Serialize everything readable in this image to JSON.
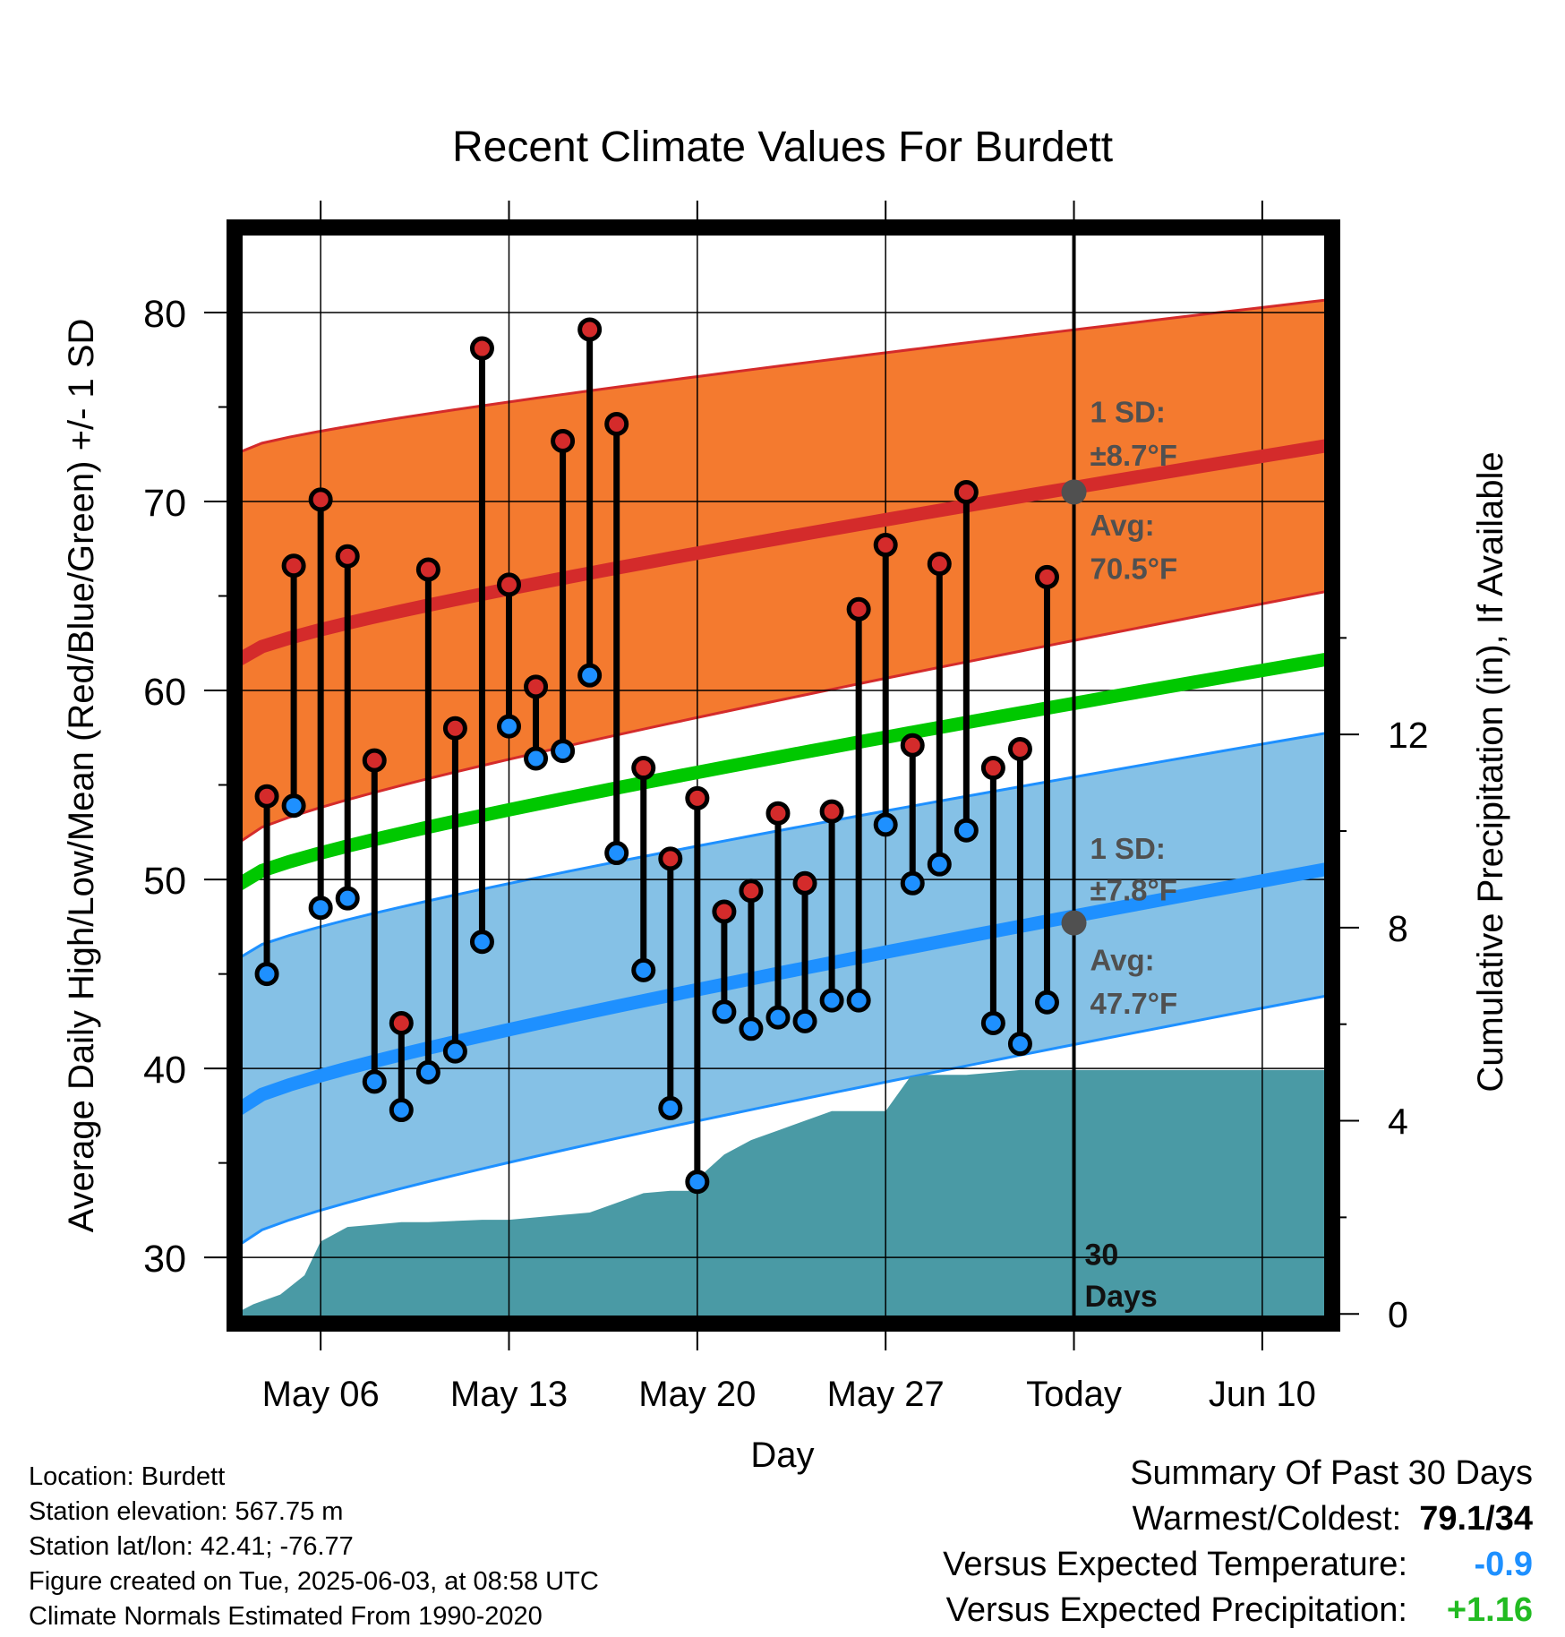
{
  "chart_data": {
    "type": "line",
    "title": "Recent Climate Values For Burdett",
    "xlabel": "Day",
    "ylabel": "Average Daily High/Low/Mean (Red/Blue/Green) +/- 1 SD",
    "y2label": "Cumulative Precipitation (in), If Available",
    "ylim": [
      26.5,
      84.5
    ],
    "y2lim": [
      -0.2,
      22.5
    ],
    "yticks": [
      30,
      40,
      50,
      60,
      70,
      80
    ],
    "y2ticks": [
      0,
      4,
      8,
      12
    ],
    "x_tick_labels": [
      {
        "label": "May 06",
        "day": 6
      },
      {
        "label": "May 13",
        "day": 13
      },
      {
        "label": "May 20",
        "day": 20
      },
      {
        "label": "May 27",
        "day": 27
      },
      {
        "label": "Today",
        "day": 34
      },
      {
        "label": "Jun 10",
        "day": 41
      }
    ],
    "xlim": [
      2.8,
      43.6
    ],
    "grid": true,
    "normals": {
      "avg_high": {
        "start": 61.5,
        "end": 73.0
      },
      "high_sd_upper": {
        "start": 72.5,
        "end": 80.7
      },
      "high_sd_lower": {
        "start": 51.8,
        "end": 65.3
      },
      "avg_mean": {
        "start": 49.6,
        "end": 61.7
      },
      "avg_low": {
        "start": 37.7,
        "end": 50.6
      },
      "low_sd_upper": {
        "start": 45.7,
        "end": 57.8
      },
      "low_sd_lower": {
        "start": 30.5,
        "end": 43.9
      }
    },
    "daily": {
      "days": [
        4,
        5,
        6,
        7,
        8,
        9,
        10,
        11,
        12,
        13,
        14,
        15,
        16,
        17,
        18,
        19,
        20,
        21,
        22,
        23,
        24,
        25,
        26,
        27,
        28,
        29,
        30,
        31,
        32,
        33
      ],
      "highs": [
        54.4,
        66.6,
        70.1,
        67.1,
        56.3,
        42.4,
        66.4,
        58.0,
        78.1,
        65.6,
        60.2,
        73.2,
        79.1,
        74.1,
        55.9,
        51.1,
        54.3,
        48.3,
        49.4,
        53.5,
        49.8,
        53.6,
        64.3,
        67.7,
        57.1,
        66.7,
        70.5,
        55.9,
        56.9,
        66.0
      ],
      "lows": [
        45.0,
        53.9,
        48.5,
        49.0,
        39.3,
        37.8,
        39.8,
        40.9,
        46.7,
        58.1,
        56.4,
        56.8,
        60.8,
        51.4,
        45.2,
        37.9,
        34.0,
        43.0,
        42.1,
        42.7,
        42.5,
        43.6,
        43.6,
        52.9,
        49.8,
        50.8,
        52.6,
        42.4,
        41.3,
        43.5
      ]
    },
    "precip_cumulative": [
      [
        2.8,
        0.0
      ],
      [
        3.5,
        0.2
      ],
      [
        4.5,
        0.4
      ],
      [
        5.4,
        0.8
      ],
      [
        6.0,
        1.5
      ],
      [
        7.0,
        1.8
      ],
      [
        8.0,
        1.85
      ],
      [
        9.0,
        1.9
      ],
      [
        10.0,
        1.9
      ],
      [
        12.0,
        1.95
      ],
      [
        13.0,
        1.95
      ],
      [
        14.0,
        2.0
      ],
      [
        15.0,
        2.05
      ],
      [
        16.0,
        2.1
      ],
      [
        17.0,
        2.3
      ],
      [
        18.0,
        2.5
      ],
      [
        19.0,
        2.55
      ],
      [
        20.0,
        2.55
      ],
      [
        20.2,
        2.9
      ],
      [
        21.0,
        3.3
      ],
      [
        22.0,
        3.6
      ],
      [
        23.0,
        3.8
      ],
      [
        24.0,
        4.0
      ],
      [
        25.0,
        4.2
      ],
      [
        26.0,
        4.2
      ],
      [
        27.0,
        4.2
      ],
      [
        27.9,
        4.9
      ],
      [
        28.5,
        4.95
      ],
      [
        30.0,
        4.95
      ],
      [
        31.0,
        5.0
      ],
      [
        32.0,
        5.05
      ],
      [
        33.0,
        5.05
      ],
      [
        43.6,
        5.05
      ]
    ],
    "today_day": 34,
    "today_markers": {
      "avg_high": 70.5,
      "avg_low": 47.7
    },
    "annotations": {
      "high_sd_label": "1 SD:",
      "high_sd_value": "±8.7°F",
      "high_avg_label": "Avg:",
      "high_avg_value": "70.5°F",
      "low_sd_label": "1 SD:",
      "low_sd_value": "±7.8°F",
      "low_avg_label": "Avg:",
      "low_avg_value": "47.7°F",
      "days_label_1": "30",
      "days_label_2": "Days"
    },
    "colors": {
      "high_band": "#f47a2f",
      "high_line": "#d42b2b",
      "mean_line": "#00c800",
      "low_band": "#85c1e6",
      "low_line": "#1e90ff",
      "precip": "#4a9aa5",
      "high_dot": "#d42b2b",
      "low_dot": "#1e90ff",
      "annotation": "#505050"
    }
  },
  "info": {
    "location": "Location: Burdett",
    "elevation": "Station elevation: 567.75 m",
    "latlon": "Station lat/lon: 42.41; -76.77",
    "created": "Figure created on Tue, 2025-06-03, at 08:58 UTC",
    "normals": "Climate Normals Estimated From 1990-2020"
  },
  "summary": {
    "heading": "Summary Of Past 30 Days",
    "warm_cold_label": "Warmest/Coldest:",
    "warm_cold_value": "79.1/34",
    "temp_label": "Versus Expected Temperature:",
    "temp_value": "-0.9",
    "temp_color": "#1e90ff",
    "precip_label": "Versus Expected Precipitation:",
    "precip_value": "+1.16",
    "precip_color": "#22bb22"
  }
}
